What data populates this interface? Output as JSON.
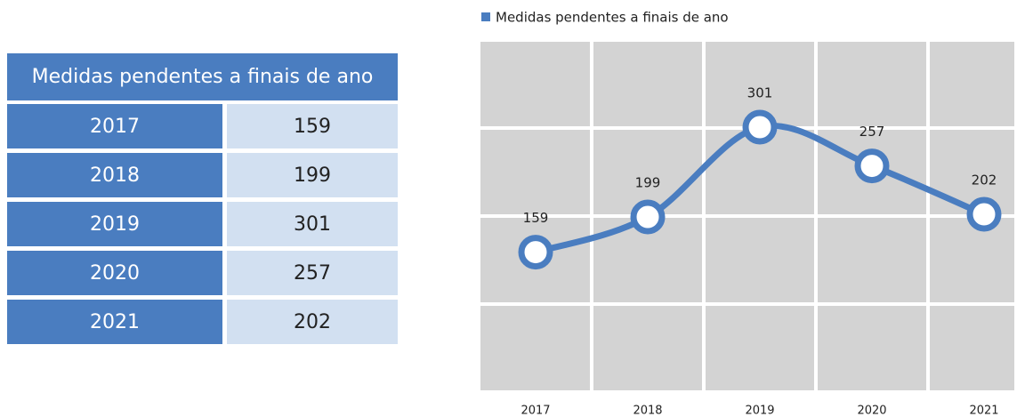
{
  "table": {
    "header": "Medidas pendentes a finais de ano",
    "rows": [
      [
        "2017",
        "159"
      ],
      [
        "2018",
        "199"
      ],
      [
        "2019",
        "301"
      ],
      [
        "2020",
        "257"
      ],
      [
        "2021",
        "202"
      ]
    ]
  },
  "chart_data": {
    "type": "line",
    "categories": [
      "2017",
      "2018",
      "2019",
      "2020",
      "2021"
    ],
    "series": [
      {
        "name": "Medidas pendentes a finais de ano",
        "color": "#4a7dc0",
        "values": [
          159,
          199,
          301,
          257,
          202
        ]
      }
    ],
    "ylim": [
      0,
      400
    ],
    "yticks": [
      0,
      100,
      200,
      300,
      400
    ],
    "grid": true,
    "legend": "top"
  }
}
